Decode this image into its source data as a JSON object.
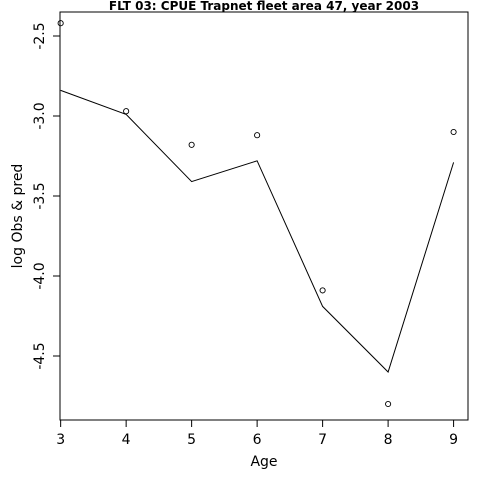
{
  "chart_data": {
    "type": "line",
    "title": "FLT 03: CPUE Trapnet fleet area 47, year 2003",
    "xlabel": "Age",
    "ylabel": "log Obs & pred",
    "x": [
      3,
      4,
      5,
      6,
      7,
      8,
      9
    ],
    "x_ticks": [
      "3",
      "4",
      "5",
      "6",
      "7",
      "8",
      "9"
    ],
    "y_ticks": [
      "-2.5",
      "-3.0",
      "-3.5",
      "-4.0",
      "-4.5"
    ],
    "y_tick_values": [
      -2.5,
      -3.0,
      -3.5,
      -4.0,
      -4.5
    ],
    "xlim": [
      2.99,
      9.22
    ],
    "ylim": [
      -4.9,
      -2.35
    ],
    "series": [
      {
        "role": "observed",
        "style": "points",
        "values": [
          -2.42,
          -2.97,
          -3.18,
          -3.12,
          -4.09,
          -4.8,
          -3.1
        ]
      },
      {
        "role": "predicted",
        "style": "line",
        "values": [
          -2.84,
          -2.99,
          -3.41,
          -3.28,
          -4.19,
          -4.6,
          -3.29
        ]
      }
    ],
    "grid": false,
    "legend": "none"
  }
}
